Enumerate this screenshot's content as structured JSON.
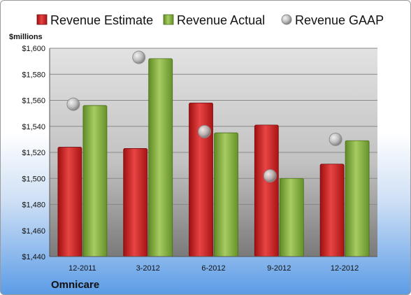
{
  "chart_data": {
    "type": "bar",
    "company": "Omnicare",
    "unit_label": "$millions",
    "categories": [
      "12-2011",
      "3-2012",
      "6-2012",
      "9-2012",
      "12-2012"
    ],
    "series": [
      {
        "name": "Revenue Estimate",
        "kind": "bar",
        "color": "#d42a2a",
        "values": [
          1524,
          1523,
          1558,
          1541,
          1511
        ]
      },
      {
        "name": "Revenue Actual",
        "kind": "bar",
        "color": "#8db548",
        "values": [
          1556,
          1592,
          1535,
          1500,
          1529
        ]
      },
      {
        "name": "Revenue GAAP",
        "kind": "marker",
        "color": "#b8b8b8",
        "values": [
          1557,
          1593,
          1536,
          1502,
          1530
        ]
      }
    ],
    "ylim": [
      1440,
      1600
    ],
    "yticks": [
      "$1,440",
      "$1,460",
      "$1,480",
      "$1,500",
      "$1,520",
      "$1,540",
      "$1,560",
      "$1,580",
      "$1,600"
    ],
    "grid": true,
    "legend_position": "top"
  }
}
